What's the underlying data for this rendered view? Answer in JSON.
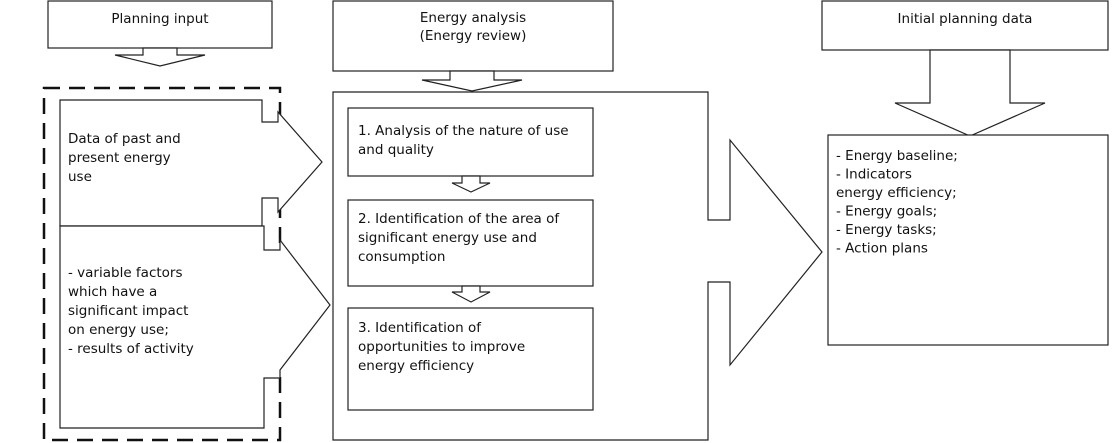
{
  "header_boxes": [
    {
      "lines": [
        "Planning input"
      ]
    },
    {
      "lines": [
        "Energy analysis",
        "(Energy review)"
      ]
    },
    {
      "lines": [
        "Initial planning data"
      ]
    }
  ],
  "inputs": [
    {
      "lines": [
        "Data of past and",
        "present energy",
        "use"
      ]
    },
    {
      "lines": [
        "- variable factors",
        "which have a",
        "significant impact",
        "on energy use;",
        "- results of activity"
      ]
    }
  ],
  "analysis_steps": [
    {
      "lines": [
        "1. Analysis of the nature of use",
        "and quality"
      ]
    },
    {
      "lines": [
        "2. Identification of the area of",
        "significant energy use and",
        "consumption"
      ]
    },
    {
      "lines": [
        "3. Identification of",
        "opportunities to improve",
        "energy efficiency"
      ]
    }
  ],
  "output": {
    "lines": [
      "- Energy baseline;",
      "- Indicators",
      "energy efficiency;",
      "- Energy goals;",
      "- Energy tasks;",
      "- Action plans"
    ]
  }
}
